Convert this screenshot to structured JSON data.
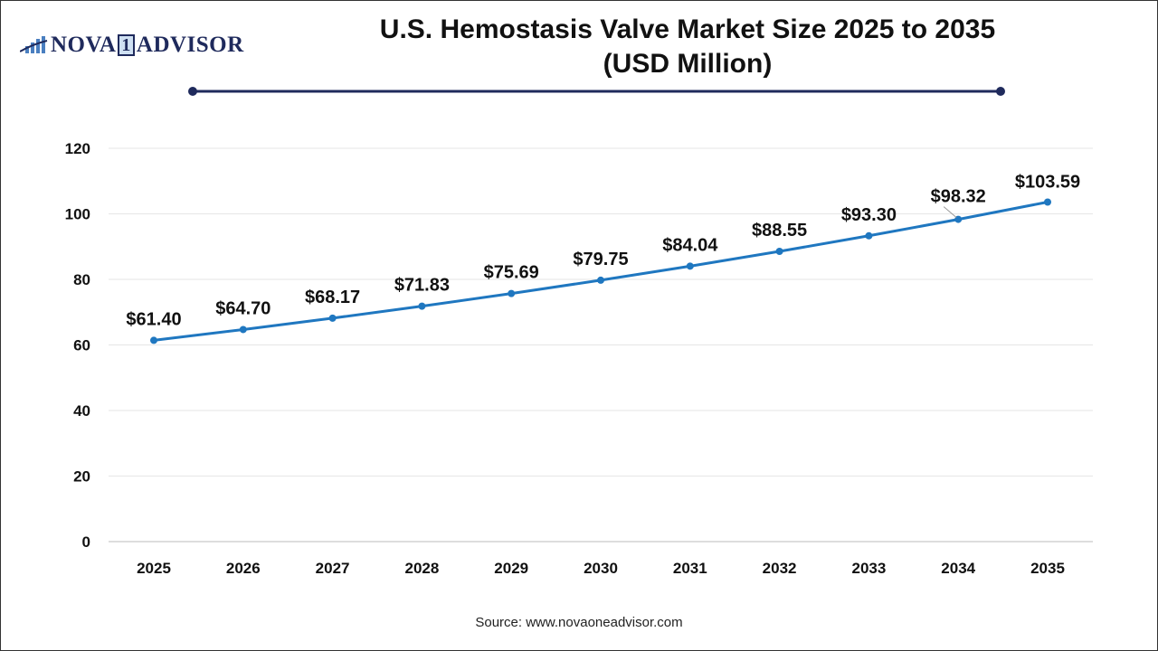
{
  "logo": {
    "text_left": "NOVA",
    "text_mid": "1",
    "text_right": "ADVISOR"
  },
  "header": {
    "title_line1": "U.S. Hemostasis Valve Market Size 2025 to 2035",
    "title_line2": "(USD Million)"
  },
  "source": "Source: www.novaoneadvisor.com",
  "colors": {
    "line": "#1f77c0",
    "title_rule": "#1f2a5c",
    "logo": "#1f2a5c"
  },
  "chart_data": {
    "type": "line",
    "title": "U.S. Hemostasis Valve Market Size 2025 to 2035 (USD Million)",
    "categories": [
      "2025",
      "2026",
      "2027",
      "2028",
      "2029",
      "2030",
      "2031",
      "2032",
      "2033",
      "2034",
      "2035"
    ],
    "values": [
      61.4,
      64.7,
      68.17,
      71.83,
      75.69,
      79.75,
      84.04,
      88.55,
      93.3,
      98.32,
      103.59
    ],
    "data_labels": [
      "$61.40",
      "$64.70",
      "$68.17",
      "$71.83",
      "$75.69",
      "$79.75",
      "$84.04",
      "$88.55",
      "$93.30",
      "$98.32",
      "$103.59"
    ],
    "ylim": [
      0,
      120
    ],
    "yticks": [
      0,
      20,
      40,
      60,
      80,
      100,
      120
    ],
    "grid": true,
    "legend": "none"
  }
}
